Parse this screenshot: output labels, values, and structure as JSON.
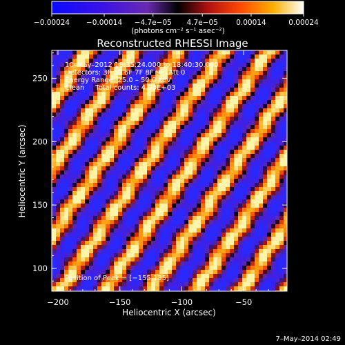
{
  "chart_data": {
    "type": "heatmap",
    "title": "Reconstructed RHESSI Image",
    "xlabel": "Heliocentric X (arcsec)",
    "ylabel": "Heliocentric Y (arcsec)",
    "xlim": [
      -205,
      -15
    ],
    "ylim": [
      82,
      272
    ],
    "xticks": [
      -200,
      -150,
      -100,
      -50
    ],
    "yticks": [
      100,
      150,
      200,
      250
    ],
    "xtick_labels": [
      "−200",
      "−150",
      "−100",
      "−50"
    ],
    "ytick_labels": [
      "100",
      "150",
      "200",
      "250"
    ],
    "colorbar": {
      "ticks": [
        -0.00024,
        -0.00014,
        -4.7e-05,
        4.7e-05,
        0.00014,
        0.00024
      ],
      "tick_labels": [
        "−0.00024",
        "−0.00014",
        "−4.7e−05",
        "4.7e−05",
        "0.00014",
        "0.00024"
      ],
      "unit_label": "(photons cm⁻² s⁻¹ asec⁻²)",
      "colormap": "blue-purple-black-red-orange-yellow-white"
    },
    "annotations": [
      "10–May–2012 18:35:24.000 to 18:40:30.000",
      "Detectors: 3F 5F 6F 7F 8F 9F, Att 0",
      "Energy Range: 25.0 – 50.0 keV",
      "Clean     Total counts: 4.90E+03",
      "Position of Peak = [−155,135]"
    ],
    "peak": [
      -155,
      135
    ],
    "pattern": {
      "description_values": "striped fringe pattern",
      "fringe_direction_deg": 55,
      "fringe_period_arcsec": 30
    }
  },
  "footer": {
    "date": "7–May–2014 02:49"
  }
}
